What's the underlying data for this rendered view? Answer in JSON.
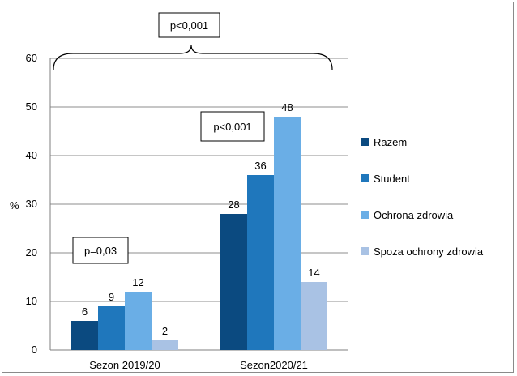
{
  "chart_data": {
    "type": "bar",
    "ylabel": "%",
    "ylim": [
      0,
      60
    ],
    "yticks": [
      0,
      10,
      20,
      30,
      40,
      50,
      60
    ],
    "grid": true,
    "legend_position": "right",
    "categories": [
      "Sezon 2019/20",
      "Sezon2020/21"
    ],
    "series": [
      {
        "name": "Razem",
        "values": [
          6,
          28
        ],
        "color": "#0b4a80"
      },
      {
        "name": "Student",
        "values": [
          9,
          36
        ],
        "color": "#1f77bc"
      },
      {
        "name": "Ochrona zdrowia",
        "values": [
          12,
          48
        ],
        "color": "#6aaee6"
      },
      {
        "name": "Spoza ochrony zdrowia",
        "values": [
          2,
          14
        ],
        "color": "#a9c2e4"
      }
    ],
    "annotations": {
      "overall": "p<0,001",
      "season1": "p=0,03",
      "season2": "p<0,001"
    }
  }
}
